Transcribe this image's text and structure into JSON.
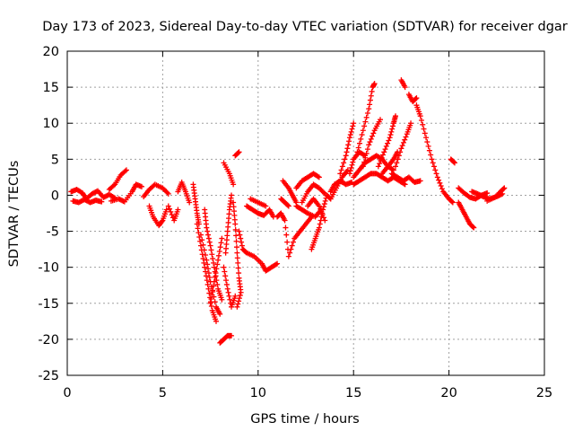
{
  "chart_data": {
    "type": "scatter",
    "title": "Day 173 of 2023, Sidereal Day-to-day VTEC variation (SDTVAR) for receiver dgar",
    "xlabel": "GPS time / hours",
    "ylabel": "SDTVAR / TECUs",
    "xlim": [
      0,
      25
    ],
    "ylim": [
      -25,
      20
    ],
    "xticks": [
      0,
      5,
      10,
      15,
      20,
      25
    ],
    "yticks": [
      -25,
      -20,
      -15,
      -10,
      -5,
      0,
      5,
      10,
      15,
      20
    ],
    "grid": true,
    "marker": "+",
    "series": [
      {
        "name": "SDTVAR",
        "color": "#ff0000",
        "segments": [
          [
            [
              0.2,
              0.5
            ],
            [
              0.5,
              0.8
            ],
            [
              0.8,
              0.3
            ],
            [
              1.0,
              -0.5
            ],
            [
              1.3,
              0.2
            ],
            [
              1.6,
              0.6
            ],
            [
              1.9,
              -0.3
            ],
            [
              2.2,
              0.1
            ],
            [
              2.5,
              -0.4
            ]
          ],
          [
            [
              0.3,
              -0.8
            ],
            [
              0.6,
              -1.0
            ],
            [
              0.9,
              -0.6
            ],
            [
              1.2,
              -1.0
            ],
            [
              1.5,
              -0.7
            ],
            [
              1.8,
              -0.9
            ]
          ],
          [
            [
              2.2,
              0.8
            ],
            [
              2.5,
              1.5
            ],
            [
              2.8,
              2.8
            ],
            [
              3.1,
              3.5
            ]
          ],
          [
            [
              2.3,
              -0.8
            ],
            [
              2.7,
              -0.5
            ],
            [
              3.0,
              -0.9
            ],
            [
              3.4,
              0.5
            ],
            [
              3.6,
              1.5
            ],
            [
              3.9,
              1.2
            ]
          ],
          [
            [
              4.0,
              -0.2
            ],
            [
              4.3,
              0.8
            ],
            [
              4.6,
              1.5
            ],
            [
              5.0,
              1.0
            ],
            [
              5.3,
              0.2
            ]
          ],
          [
            [
              4.3,
              -1.5
            ],
            [
              4.5,
              -3.0
            ],
            [
              4.8,
              -4.2
            ],
            [
              5.0,
              -3.5
            ],
            [
              5.2,
              -2.0
            ]
          ],
          [
            [
              5.3,
              -1.5
            ],
            [
              5.6,
              -3.5
            ],
            [
              5.8,
              -2.0
            ]
          ],
          [
            [
              5.8,
              0.5
            ],
            [
              6.0,
              1.8
            ],
            [
              6.2,
              0.5
            ],
            [
              6.4,
              -1.0
            ]
          ],
          [
            [
              6.6,
              1.5
            ],
            [
              6.7,
              -0.5
            ],
            [
              6.8,
              -2.5
            ],
            [
              6.9,
              -4.0
            ]
          ],
          [
            [
              6.8,
              -4.0
            ],
            [
              7.0,
              -7.0
            ],
            [
              7.2,
              -10.0
            ],
            [
              7.4,
              -13.0
            ],
            [
              7.6,
              -16.0
            ],
            [
              7.8,
              -17.5
            ]
          ],
          [
            [
              7.0,
              -5.5
            ],
            [
              7.3,
              -9.0
            ],
            [
              7.5,
              -12.0
            ],
            [
              7.8,
              -15.5
            ],
            [
              8.0,
              -16.5
            ]
          ],
          [
            [
              7.2,
              -2.0
            ],
            [
              7.3,
              -4.5
            ],
            [
              7.5,
              -7.0
            ],
            [
              7.7,
              -10.0
            ],
            [
              7.9,
              -13.0
            ],
            [
              8.1,
              -14.5
            ]
          ],
          [
            [
              7.5,
              -15.0
            ],
            [
              7.7,
              -12.0
            ],
            [
              7.9,
              -9.0
            ],
            [
              8.1,
              -6.0
            ]
          ],
          [
            [
              8.0,
              -20.5
            ],
            [
              8.2,
              -20.0
            ],
            [
              8.4,
              -19.5
            ],
            [
              8.6,
              -19.5
            ]
          ],
          [
            [
              8.2,
              -10.0
            ],
            [
              8.4,
              -13.0
            ],
            [
              8.6,
              -15.5
            ],
            [
              8.8,
              -14.0
            ]
          ],
          [
            [
              8.3,
              -8.0
            ],
            [
              8.4,
              -5.0
            ],
            [
              8.5,
              -2.0
            ],
            [
              8.6,
              0.0
            ]
          ],
          [
            [
              8.2,
              4.5
            ],
            [
              8.5,
              3.0
            ],
            [
              8.7,
              1.5
            ]
          ],
          [
            [
              8.8,
              5.5
            ],
            [
              9.0,
              6.0
            ]
          ],
          [
            [
              8.7,
              -1.0
            ],
            [
              8.8,
              -4.0
            ],
            [
              8.9,
              -8.0
            ],
            [
              9.0,
              -11.5
            ],
            [
              9.1,
              -13.5
            ],
            [
              8.9,
              -15.5
            ]
          ],
          [
            [
              9.0,
              -5.0
            ],
            [
              9.2,
              -7.5
            ],
            [
              9.4,
              -8.0
            ],
            [
              9.8,
              -8.5
            ],
            [
              10.2,
              -9.5
            ],
            [
              10.4,
              -10.5
            ],
            [
              10.7,
              -10.0
            ],
            [
              11.0,
              -9.5
            ]
          ],
          [
            [
              9.4,
              -1.5
            ],
            [
              9.7,
              -2.0
            ],
            [
              10.0,
              -2.5
            ],
            [
              10.3,
              -2.8
            ],
            [
              10.6,
              -2.0
            ],
            [
              10.8,
              -3.0
            ]
          ],
          [
            [
              9.6,
              -0.5
            ],
            [
              10.0,
              -1.0
            ],
            [
              10.4,
              -1.5
            ]
          ],
          [
            [
              11.0,
              -3.0
            ],
            [
              11.2,
              -2.5
            ],
            [
              11.4,
              -3.5
            ],
            [
              11.6,
              -8.5
            ],
            [
              11.9,
              -6.0
            ],
            [
              12.2,
              -5.0
            ],
            [
              12.5,
              -4.0
            ],
            [
              12.8,
              -3.0
            ]
          ],
          [
            [
              11.2,
              -0.5
            ],
            [
              11.4,
              -1.0
            ],
            [
              11.6,
              -1.5
            ]
          ],
          [
            [
              11.3,
              2.0
            ],
            [
              11.6,
              1.0
            ],
            [
              11.8,
              0.0
            ],
            [
              12.0,
              -1.0
            ]
          ],
          [
            [
              12.0,
              -1.5
            ],
            [
              12.3,
              -2.0
            ],
            [
              12.6,
              -2.5
            ],
            [
              13.0,
              -3.0
            ],
            [
              13.3,
              -2.0
            ]
          ],
          [
            [
              12.0,
              1.0
            ],
            [
              12.3,
              2.0
            ],
            [
              12.6,
              2.5
            ],
            [
              12.9,
              3.0
            ],
            [
              13.2,
              2.5
            ]
          ],
          [
            [
              12.3,
              -1.0
            ],
            [
              12.6,
              0.5
            ],
            [
              12.9,
              1.5
            ],
            [
              13.2,
              1.0
            ],
            [
              13.5,
              0.2
            ]
          ],
          [
            [
              12.6,
              -1.5
            ],
            [
              12.9,
              -0.5
            ],
            [
              13.2,
              -1.5
            ],
            [
              13.5,
              -3.5
            ]
          ],
          [
            [
              12.8,
              -7.5
            ],
            [
              13.0,
              -6.0
            ],
            [
              13.2,
              -4.5
            ],
            [
              13.4,
              -2.0
            ],
            [
              13.6,
              0.0
            ],
            [
              13.8,
              -0.5
            ]
          ],
          [
            [
              13.8,
              0.5
            ],
            [
              14.0,
              1.5
            ],
            [
              14.3,
              2.0
            ],
            [
              14.6,
              1.5
            ],
            [
              14.9,
              1.8
            ]
          ],
          [
            [
              13.8,
              -0.5
            ],
            [
              14.1,
              1.0
            ],
            [
              14.4,
              2.5
            ],
            [
              14.7,
              3.5
            ]
          ],
          [
            [
              14.3,
              3.0
            ],
            [
              14.6,
              5.5
            ],
            [
              14.8,
              8.0
            ],
            [
              15.0,
              10.0
            ]
          ],
          [
            [
              14.8,
              3.0
            ],
            [
              15.0,
              5.0
            ],
            [
              15.3,
              6.0
            ],
            [
              15.6,
              5.5
            ]
          ],
          [
            [
              15.0,
              1.5
            ],
            [
              15.3,
              2.0
            ],
            [
              15.6,
              2.5
            ],
            [
              15.9,
              3.0
            ],
            [
              16.2,
              3.0
            ],
            [
              16.5,
              2.5
            ],
            [
              16.8,
              2.0
            ],
            [
              17.1,
              2.5
            ],
            [
              17.4,
              2.0
            ],
            [
              17.7,
              1.5
            ]
          ],
          [
            [
              15.0,
              2.5
            ],
            [
              15.3,
              3.5
            ],
            [
              15.6,
              4.5
            ],
            [
              15.9,
              5.0
            ],
            [
              16.2,
              5.5
            ],
            [
              16.5,
              5.0
            ],
            [
              16.8,
              4.0
            ],
            [
              17.1,
              3.5
            ]
          ],
          [
            [
              15.2,
              6.0
            ],
            [
              15.5,
              9.0
            ],
            [
              15.8,
              12.0
            ],
            [
              16.0,
              15.0
            ],
            [
              16.1,
              15.5
            ]
          ],
          [
            [
              15.5,
              4.0
            ],
            [
              15.8,
              7.0
            ],
            [
              16.1,
              9.0
            ],
            [
              16.4,
              10.5
            ]
          ],
          [
            [
              16.3,
              4.0
            ],
            [
              16.6,
              6.0
            ],
            [
              16.9,
              8.0
            ],
            [
              17.1,
              10.0
            ],
            [
              17.2,
              11.0
            ]
          ],
          [
            [
              16.5,
              3.0
            ],
            [
              16.8,
              4.0
            ],
            [
              17.1,
              5.0
            ],
            [
              17.3,
              6.0
            ]
          ],
          [
            [
              17.0,
              3.0
            ],
            [
              17.3,
              2.5
            ],
            [
              17.6,
              2.0
            ],
            [
              17.9,
              2.5
            ],
            [
              18.2,
              1.8
            ],
            [
              18.5,
              2.0
            ]
          ],
          [
            [
              17.2,
              4.0
            ],
            [
              17.5,
              6.5
            ],
            [
              17.8,
              8.5
            ],
            [
              18.0,
              10.0
            ]
          ],
          [
            [
              17.5,
              16.0
            ],
            [
              17.7,
              15.0
            ]
          ],
          [
            [
              17.9,
              14.0
            ],
            [
              18.1,
              13.0
            ],
            [
              18.3,
              13.5
            ]
          ],
          [
            [
              18.3,
              12.5
            ],
            [
              18.5,
              11.0
            ],
            [
              18.8,
              8.0
            ],
            [
              19.1,
              5.0
            ],
            [
              19.4,
              2.5
            ],
            [
              19.7,
              0.5
            ],
            [
              20.0,
              -0.5
            ],
            [
              20.2,
              -1.0
            ]
          ],
          [
            [
              20.1,
              5.0
            ],
            [
              20.3,
              4.5
            ]
          ],
          [
            [
              20.5,
              -1.0
            ],
            [
              20.7,
              -2.0
            ],
            [
              20.9,
              -3.0
            ],
            [
              21.1,
              -4.0
            ],
            [
              21.3,
              -4.5
            ]
          ],
          [
            [
              20.5,
              1.0
            ],
            [
              20.8,
              0.3
            ],
            [
              21.1,
              -0.3
            ],
            [
              21.4,
              -0.5
            ],
            [
              21.7,
              0.0
            ],
            [
              22.0,
              0.3
            ]
          ],
          [
            [
              21.2,
              0.5
            ],
            [
              21.5,
              0.2
            ],
            [
              21.8,
              -0.2
            ],
            [
              22.1,
              -0.5
            ],
            [
              22.5,
              -0.2
            ],
            [
              22.8,
              0.2
            ]
          ],
          [
            [
              22.0,
              -0.8
            ],
            [
              22.4,
              -0.3
            ],
            [
              22.7,
              0.5
            ],
            [
              22.9,
              1.0
            ]
          ]
        ]
      }
    ]
  }
}
